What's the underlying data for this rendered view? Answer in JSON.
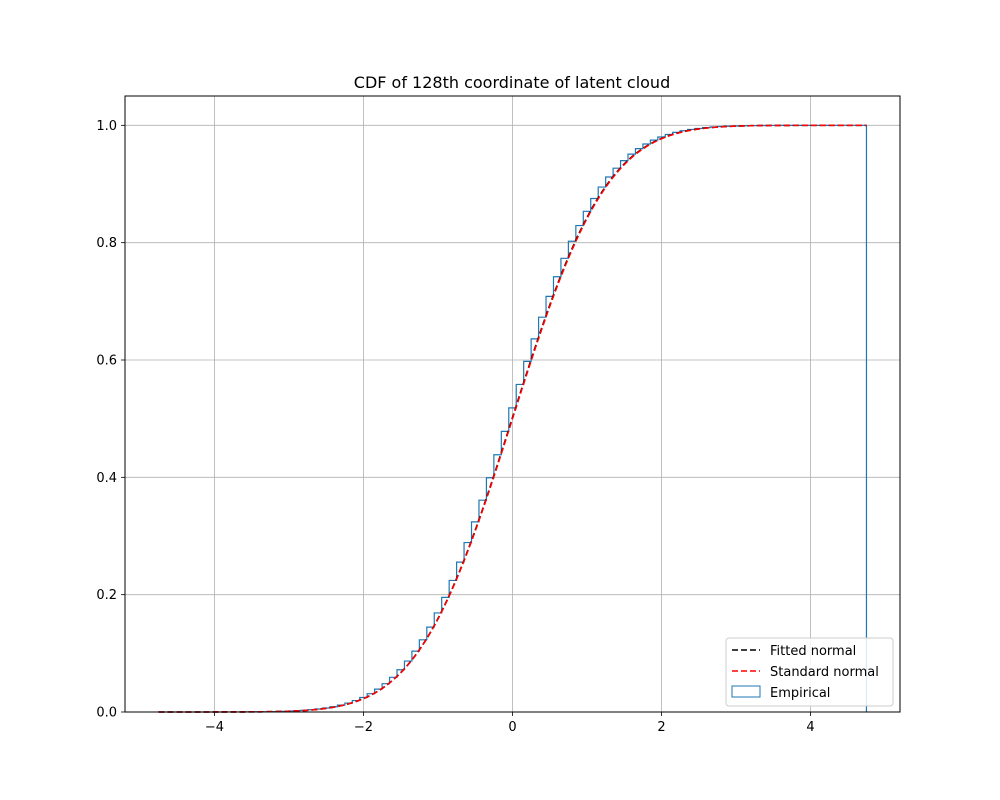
{
  "chart_data": {
    "type": "line",
    "title": "CDF of 128th coordinate of latent cloud",
    "xlabel": "",
    "ylabel": "",
    "xlim": [
      -5.2,
      5.2
    ],
    "ylim": [
      0.0,
      1.05
    ],
    "x_ticks": [
      -4,
      -2,
      0,
      2,
      4
    ],
    "x_tick_labels": [
      "−4",
      "−2",
      "0",
      "2",
      "4"
    ],
    "y_ticks": [
      0.0,
      0.2,
      0.4,
      0.6,
      0.8,
      1.0
    ],
    "y_tick_labels": [
      "0.0",
      "0.2",
      "0.4",
      "0.6",
      "0.8",
      "1.0"
    ],
    "grid": true,
    "legend_position": "lower-right",
    "series": [
      {
        "name": "Fitted normal",
        "style": "dashed",
        "color": "#000000",
        "x": [
          -4.75,
          -4.0,
          -3.5,
          -3.0,
          -2.5,
          -2.0,
          -1.75,
          -1.5,
          -1.25,
          -1.0,
          -0.75,
          -0.5,
          -0.25,
          0.0,
          0.25,
          0.5,
          0.75,
          1.0,
          1.25,
          1.5,
          1.75,
          2.0,
          2.5,
          3.0,
          3.5,
          4.0,
          4.75
        ],
        "y": [
          0.0,
          0.0,
          0.0003,
          0.0016,
          0.0068,
          0.0235,
          0.04,
          0.0697,
          0.1075,
          0.1611,
          0.2302,
          0.3133,
          0.405,
          0.502,
          0.5994,
          0.6915,
          0.7734,
          0.8413,
          0.8944,
          0.9332,
          0.9599,
          0.9772,
          0.9938,
          0.9986,
          0.9997,
          1.0,
          1.0
        ]
      },
      {
        "name": "Standard normal",
        "style": "dashed",
        "color": "#ff0000",
        "x": [
          -4.75,
          -4.0,
          -3.5,
          -3.0,
          -2.5,
          -2.0,
          -1.75,
          -1.5,
          -1.25,
          -1.0,
          -0.75,
          -0.5,
          -0.25,
          0.0,
          0.25,
          0.5,
          0.75,
          1.0,
          1.25,
          1.5,
          1.75,
          2.0,
          2.5,
          3.0,
          3.5,
          4.0,
          4.75
        ],
        "y": [
          0.0,
          0.0,
          0.0002,
          0.0013,
          0.0062,
          0.0228,
          0.0401,
          0.0668,
          0.1056,
          0.1587,
          0.2266,
          0.3085,
          0.4013,
          0.5,
          0.5987,
          0.6915,
          0.7734,
          0.8413,
          0.8944,
          0.9332,
          0.9599,
          0.9772,
          0.9938,
          0.9987,
          0.9998,
          1.0,
          1.0
        ]
      },
      {
        "name": "Empirical",
        "style": "step",
        "color": "#1f77b4",
        "bin_start": -4.75,
        "bin_end": 4.75,
        "bin_count": 95
      }
    ]
  }
}
